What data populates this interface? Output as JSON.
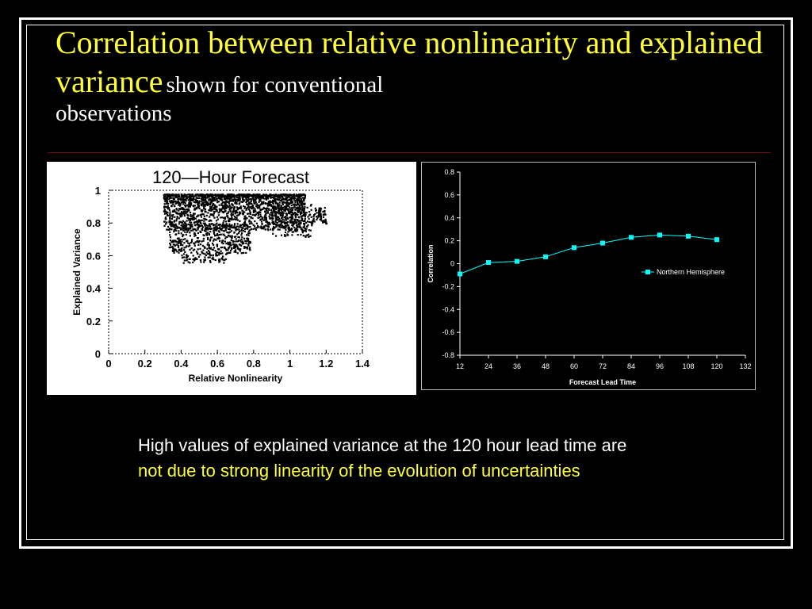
{
  "title": {
    "main": "Correlation between relative nonlinearity and explained variance",
    "sub": "shown for conventional",
    "sub2": "observations"
  },
  "caption": {
    "text_white": "High values of explained variance at the 120 hour lead time are ",
    "text_yellow": "not due to strong linearity of the evolution of uncertainties"
  },
  "colors": {
    "title": "#ffff33",
    "highlight": "#ffff33",
    "series": "#00ffff",
    "background": "#000000"
  },
  "chart_data": [
    {
      "type": "scatter",
      "title": "120—Hour Forecast",
      "xlabel": "Relative  Nonlinearity",
      "ylabel": "Explained  Variance",
      "xlim": [
        0,
        1.4
      ],
      "ylim": [
        0,
        1
      ],
      "xticks": [
        "0",
        "0.2",
        "0.4",
        "0.6",
        "0.8",
        "1",
        "1.2",
        "1.4"
      ],
      "yticks": [
        "0",
        "0.2",
        "0.4",
        "0.6",
        "0.8",
        "1"
      ],
      "description_points": {
        "x_range": [
          0.28,
          1.2
        ],
        "y_range": [
          0.56,
          0.98
        ],
        "dense_core": {
          "x": [
            0.3,
            1.1
          ],
          "y": [
            0.75,
            0.98
          ]
        }
      },
      "marker_color": "#000000"
    },
    {
      "type": "line",
      "xlabel": "Forecast Lead Time",
      "ylabel": "Correlation",
      "x": [
        12,
        24,
        36,
        48,
        60,
        72,
        84,
        96,
        108,
        120
      ],
      "xticks": [
        "12",
        "24",
        "36",
        "48",
        "60",
        "72",
        "84",
        "96",
        "108",
        "120",
        "132"
      ],
      "xlim": [
        12,
        132
      ],
      "ylim": [
        -0.8,
        0.8
      ],
      "yticks": [
        "-0.8",
        "-0.6",
        "-0.4",
        "-0.2",
        "0",
        "0.2",
        "0.4",
        "0.6",
        "0.8"
      ],
      "series": [
        {
          "name": "Northern Hemisphere",
          "values": [
            -0.09,
            0.01,
            0.02,
            0.06,
            0.14,
            0.18,
            0.23,
            0.25,
            0.24,
            0.21
          ]
        }
      ],
      "legend_position": "right-middle",
      "grid": false
    }
  ]
}
